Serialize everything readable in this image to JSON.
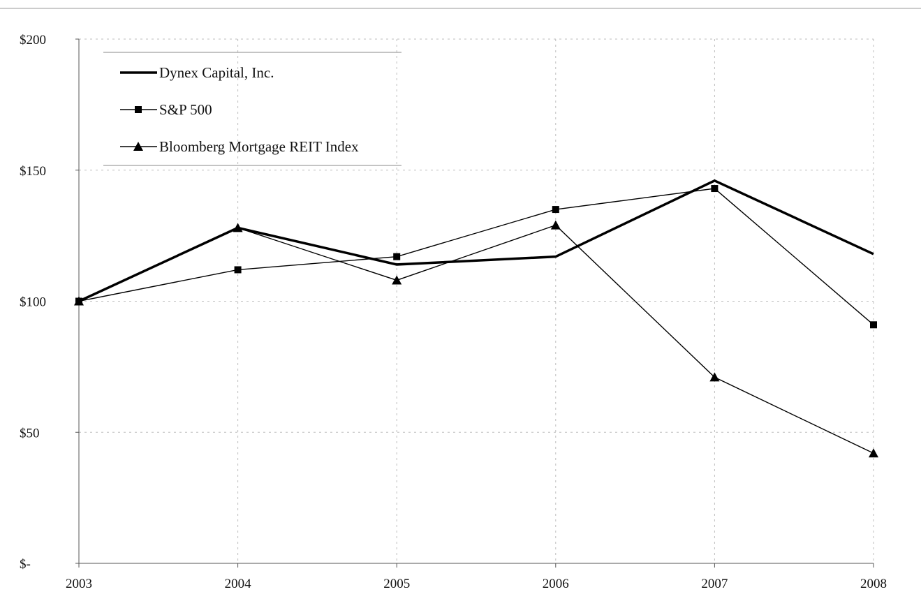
{
  "chart_data": {
    "type": "line",
    "title": "",
    "xlabel": "",
    "ylabel": "",
    "categories": [
      "2003",
      "2004",
      "2005",
      "2006",
      "2007",
      "2008"
    ],
    "ylim": [
      0,
      200
    ],
    "yticks": [
      0,
      50,
      100,
      150,
      200
    ],
    "ytick_labels": [
      "$-",
      "$50",
      "$100",
      "$150",
      "$200"
    ],
    "grid": true,
    "legend_position": "top-left",
    "series": [
      {
        "name": "Dynex Capital, Inc.",
        "marker": "none",
        "line": "thick",
        "values": [
          100,
          128,
          114,
          117,
          146,
          118
        ]
      },
      {
        "name": "S&P 500",
        "marker": "square",
        "line": "thin",
        "values": [
          100,
          112,
          117,
          135,
          143,
          91
        ]
      },
      {
        "name": "Bloomberg Mortgage REIT Index",
        "marker": "triangle",
        "line": "thin",
        "values": [
          100,
          128,
          108,
          129,
          71,
          42
        ]
      }
    ],
    "colors": {
      "line": "#000000",
      "grid": "#bdbdbd",
      "background": "#ffffff"
    }
  }
}
